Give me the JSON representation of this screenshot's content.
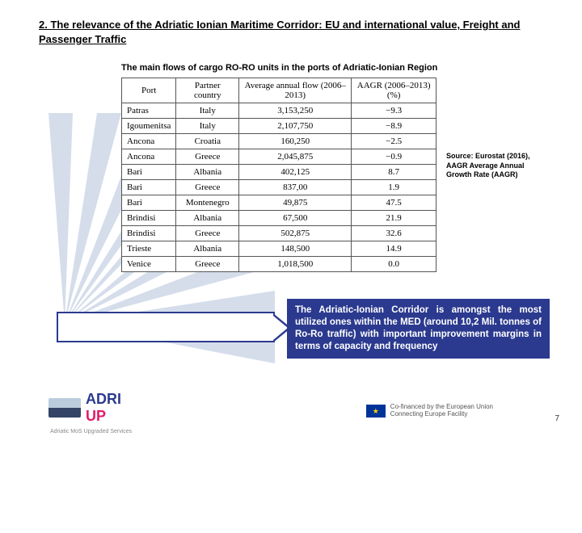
{
  "title": "2. The relevance of the Adriatic Ionian Maritime Corridor: EU and international value, Freight and Passenger Traffic",
  "subtitle": "The main flows of cargo RO-RO units in the ports of Adriatic-Ionian Region",
  "table": {
    "columns": [
      "Port",
      "Partner country",
      "Average annual flow (2006–2013)",
      "AAGR (2006–2013) (%)"
    ],
    "rows": [
      [
        "Patras",
        "Italy",
        "3,153,250",
        "−9.3"
      ],
      [
        "Igoumenitsa",
        "Italy",
        "2,107,750",
        "−8.9"
      ],
      [
        "Ancona",
        "Croatia",
        "160,250",
        "−2.5"
      ],
      [
        "Ancona",
        "Greece",
        "2,045,875",
        "−0.9"
      ],
      [
        "Bari",
        "Albania",
        "402,125",
        "8.7"
      ],
      [
        "Bari",
        "Greece",
        "837,00",
        "1.9"
      ],
      [
        "Bari",
        "Montenegro",
        "49,875",
        "47.5"
      ],
      [
        "Brindisi",
        "Albania",
        "67,500",
        "21.9"
      ],
      [
        "Brindisi",
        "Greece",
        "502,875",
        "32.6"
      ],
      [
        "Trieste",
        "Albania",
        "148,500",
        "14.9"
      ],
      [
        "Venice",
        "Greece",
        "1,018,500",
        "0.0"
      ]
    ]
  },
  "source": "Source: Eurostat (2016), AAGR Average Annual Growth Rate (AAGR)",
  "callout": "The Adriatic-Ionian Corridor is amongst the most utilized ones within the MED (around 10,2 Mil. tonnes of Ro-Ro traffic) with important improvement margins in terms of capacity and frequency",
  "logo": {
    "line1": "ADRI",
    "line2": "UP",
    "sub": "Adriatic MoS Upgraded Services"
  },
  "eu": {
    "line1": "Co-financed by the European Union",
    "line2": "Connecting Europe Facility"
  },
  "page": "7",
  "colors": {
    "primary": "#2b3a8f",
    "accent": "#e01b6a",
    "ray": "#8aa0c8"
  }
}
